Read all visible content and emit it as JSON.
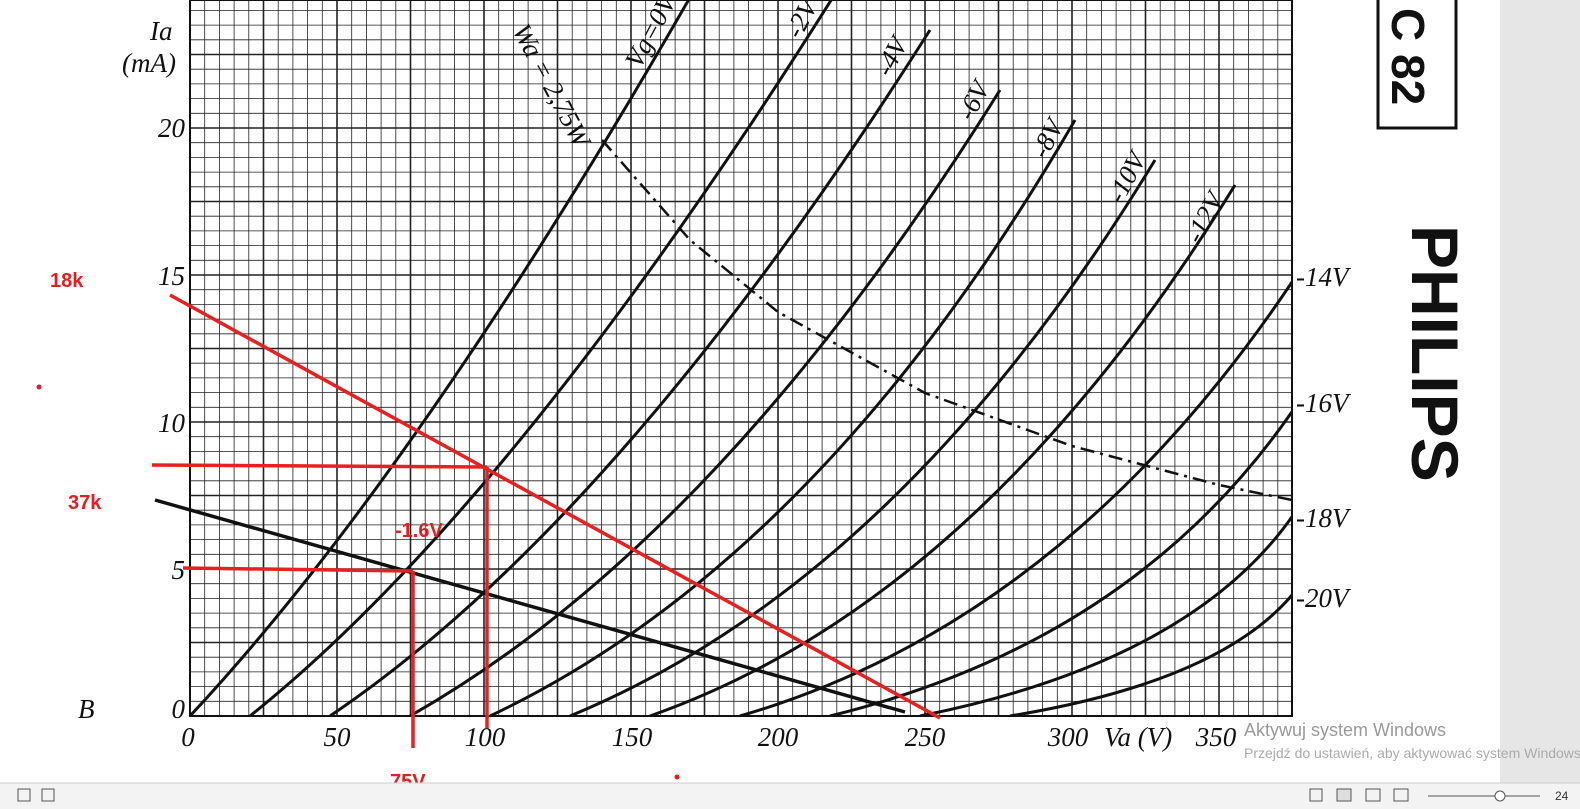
{
  "axes": {
    "y_label": "Ia",
    "y_unit": "(mA)",
    "y_ticks": [
      "0",
      "5",
      "10",
      "15",
      "20"
    ],
    "x_ticks": [
      "0",
      "50",
      "100",
      "150",
      "200",
      "250",
      "300",
      "350"
    ],
    "x_label": "Va (V)",
    "note": "B"
  },
  "curve_labels": {
    "wa": "Wa = 2,75W",
    "grid": [
      "Vg=0V",
      "-2V",
      "-4V",
      "-6V",
      "-8V",
      "-10V",
      "-12V",
      "-14V",
      "-16V",
      "-18V",
      "-20V"
    ]
  },
  "annotations": [
    "18k",
    "37k",
    "-1.6V",
    "75V"
  ],
  "tube_type": "C 82",
  "brand": "PHILIPS",
  "watermark": {
    "title": "Aktywuj system Windows",
    "text": "Przejdź do ustawień, aby aktywować system Windows"
  },
  "status": {
    "zoom": "24"
  }
}
